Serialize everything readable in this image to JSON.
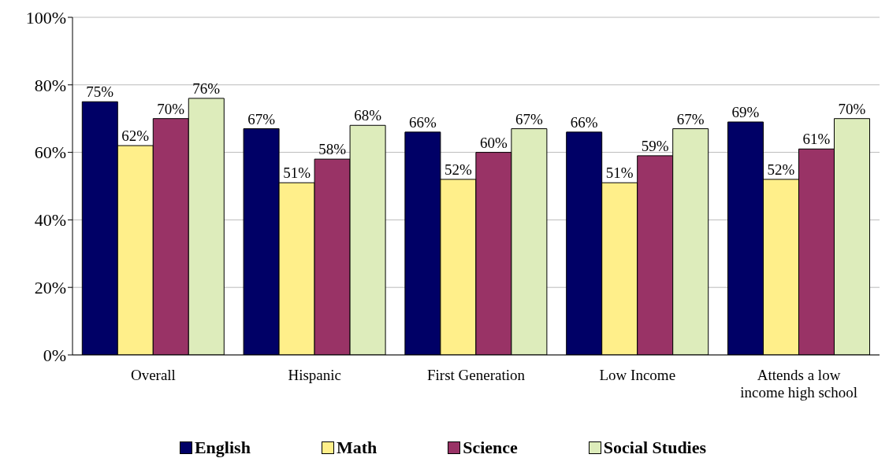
{
  "chart_data": {
    "type": "bar",
    "categories": [
      "Overall",
      "Hispanic",
      "First Generation",
      "Low Income",
      "Attends a low income high school"
    ],
    "series": [
      {
        "name": "English",
        "color": "#000066",
        "values": [
          75,
          67,
          66,
          66,
          69
        ],
        "value_labels": [
          "75%",
          "67%",
          "66%",
          "66%",
          "69%"
        ]
      },
      {
        "name": "Math",
        "color": "#ffef8a",
        "values": [
          62,
          51,
          52,
          51,
          52
        ],
        "value_labels": [
          "62%",
          "51%",
          "52%",
          "51%",
          "52%"
        ]
      },
      {
        "name": "Science",
        "color": "#993366",
        "values": [
          70,
          58,
          60,
          59,
          61
        ],
        "value_labels": [
          "70%",
          "58%",
          "60%",
          "59%",
          "61%"
        ]
      },
      {
        "name": "Social Studies",
        "color": "#ddecbb",
        "values": [
          76,
          68,
          67,
          67,
          70
        ],
        "value_labels": [
          "76%",
          "68%",
          "67%",
          "67%",
          "70%"
        ]
      }
    ],
    "ylim": [
      0,
      100
    ],
    "yticks": [
      {
        "value": 0,
        "label": "0%"
      },
      {
        "value": 20,
        "label": "20%"
      },
      {
        "value": 40,
        "label": "40%"
      },
      {
        "value": 60,
        "label": "60%"
      },
      {
        "value": 80,
        "label": "80%"
      },
      {
        "value": 100,
        "label": "100%"
      }
    ],
    "grid": "y",
    "legend": "bottom"
  }
}
